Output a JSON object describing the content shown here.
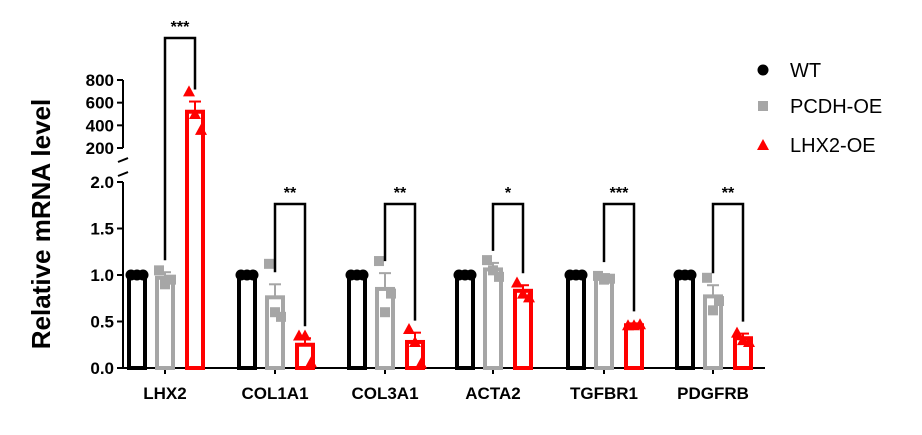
{
  "chart_data": {
    "type": "bar",
    "ylabel": "Relative mRNA level",
    "xlabel": "",
    "title": "",
    "axis_break": true,
    "ylim_lower": [
      0,
      2.0
    ],
    "ylim_upper": [
      200,
      800
    ],
    "yticks_lower": [
      "0.0",
      "0.5",
      "1.0",
      "1.5",
      "2.0"
    ],
    "yticks_upper": [
      "200",
      "400",
      "600",
      "800"
    ],
    "categories": [
      "LHX2",
      "COL1A1",
      "COL3A1",
      "ACTA2",
      "TGFBR1",
      "PDGFRB"
    ],
    "legend_position": "top-right",
    "series": [
      {
        "name": "WT",
        "color": "#000000",
        "marker": "circle",
        "values": [
          1.0,
          1.0,
          1.0,
          1.0,
          1.0,
          1.0
        ],
        "errors": [
          0,
          0,
          0,
          0,
          0,
          0
        ],
        "points": [
          [
            1.0,
            1.0,
            1.0
          ],
          [
            1.0,
            1.0,
            1.0
          ],
          [
            1.0,
            1.0,
            1.0
          ],
          [
            1.0,
            1.0,
            1.0
          ],
          [
            1.0,
            1.0,
            1.0
          ],
          [
            1.0,
            1.0,
            1.0
          ]
        ]
      },
      {
        "name": "PCDH-OE",
        "color": "#a6a6a6",
        "marker": "square",
        "values": [
          0.97,
          0.76,
          0.85,
          1.06,
          0.97,
          0.77
        ],
        "errors": [
          0.06,
          0.14,
          0.17,
          0.07,
          0.04,
          0.12
        ],
        "points": [
          [
            1.05,
            0.9,
            0.95
          ],
          [
            1.12,
            0.6,
            0.55
          ],
          [
            1.15,
            0.6,
            0.8
          ],
          [
            1.16,
            1.05,
            0.98
          ],
          [
            0.99,
            0.95,
            0.96
          ],
          [
            0.97,
            0.62,
            0.72
          ]
        ]
      },
      {
        "name": "LHX2-OE",
        "color": "#ff0000",
        "marker": "triangle",
        "values": [
          520,
          0.25,
          0.28,
          0.83,
          0.46,
          0.32
        ],
        "errors": [
          90,
          0.07,
          0.1,
          0.06,
          0.02,
          0.05
        ],
        "points": [
          [
            700,
            500,
            360
          ],
          [
            0.35,
            0.35,
            0.06
          ],
          [
            0.42,
            0.28,
            0.05
          ],
          [
            0.92,
            0.8,
            0.76
          ],
          [
            0.46,
            0.46,
            0.47
          ],
          [
            0.38,
            0.3,
            0.28
          ]
        ]
      }
    ],
    "significance": [
      "***",
      "**",
      "**",
      "*",
      "***",
      "**"
    ]
  }
}
